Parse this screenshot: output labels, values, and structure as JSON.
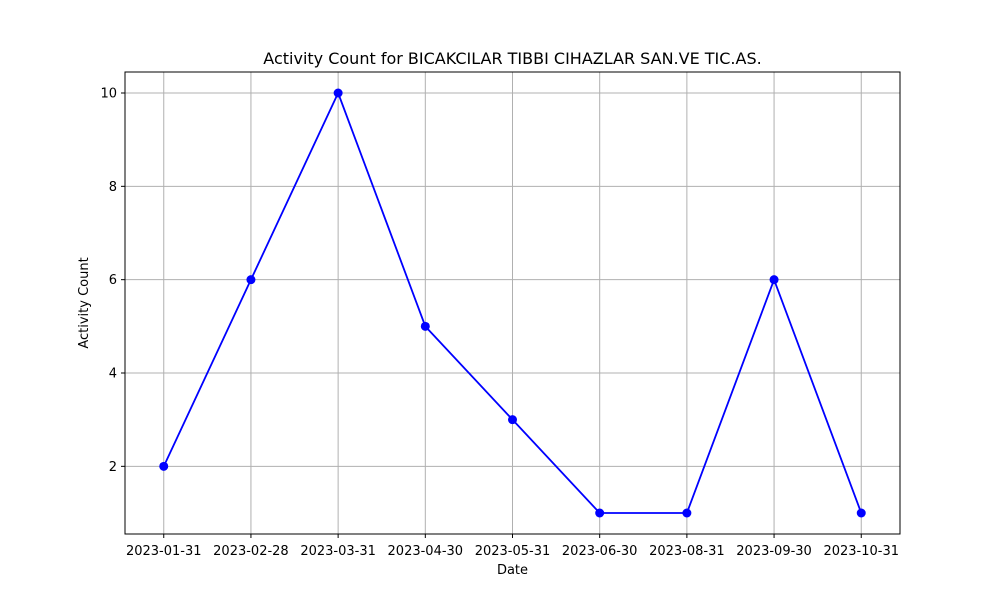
{
  "chart_data": {
    "type": "line",
    "title": "Activity Count for BICAKCILAR TIBBI CIHAZLAR SAN.VE TIC.AS.",
    "xlabel": "Date",
    "ylabel": "Activity Count",
    "categories": [
      "2023-01-31",
      "2023-02-28",
      "2023-03-31",
      "2023-04-30",
      "2023-05-31",
      "2023-06-30",
      "2023-08-31",
      "2023-09-30",
      "2023-10-31"
    ],
    "series": [
      {
        "values": [
          2,
          6,
          10,
          5,
          3,
          1,
          1,
          6,
          1
        ],
        "color": "#0000ff",
        "marker": "circle"
      }
    ],
    "y_ticks": [
      2,
      4,
      6,
      8,
      10
    ],
    "ylim": [
      0.55,
      10.45
    ],
    "grid": true,
    "legend": "none"
  }
}
